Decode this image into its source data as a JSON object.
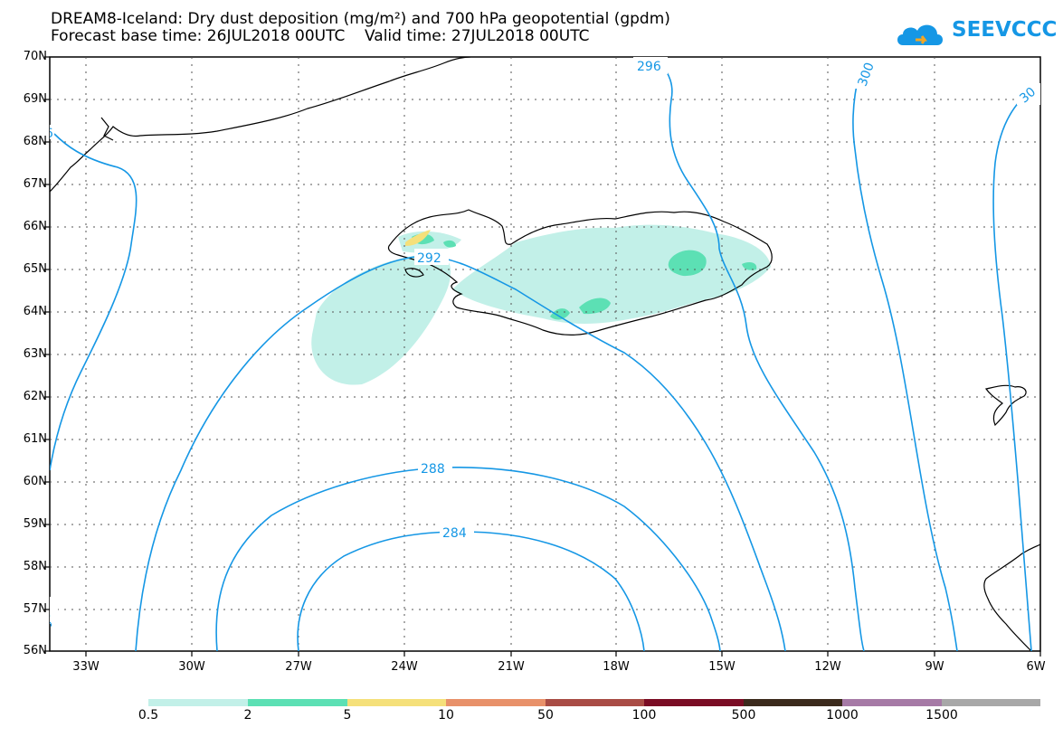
{
  "header": {
    "title_line1": "DREAM8-Iceland: Dry dust deposition (mg/m²) and 700 hPa geopotential (gpdm)",
    "title_line2": "Forecast base time: 26JUL2018 00UTC    Valid time: 27JUL2018 00UTC",
    "logo_text": "SEEVCCC"
  },
  "map": {
    "lat_labels": [
      "70N",
      "69N",
      "68N",
      "67N",
      "66N",
      "65N",
      "64N",
      "63N",
      "62N",
      "61N",
      "60N",
      "59N",
      "58N",
      "57N",
      "56N"
    ],
    "lon_labels": [
      "33W",
      "30W",
      "27W",
      "24W",
      "21W",
      "18W",
      "15W",
      "12W",
      "9W",
      "6W"
    ],
    "contour_labels": [
      "296",
      "296",
      "300",
      "30",
      "292",
      "288",
      "284",
      "296"
    ],
    "colors": {
      "contour": "#1597e5",
      "coast": "#000000",
      "grid": "#555555"
    }
  },
  "legend": {
    "colors": [
      "#c2f0e8",
      "#5ce0b4",
      "#f5e07a",
      "#e8916a",
      "#a94c45",
      "#7a0c24",
      "#3b2a1c",
      "#a67aa6",
      "#a8a8a8"
    ],
    "labels": [
      "0.5",
      "2",
      "5",
      "10",
      "50",
      "100",
      "500",
      "1000",
      "1500"
    ]
  }
}
